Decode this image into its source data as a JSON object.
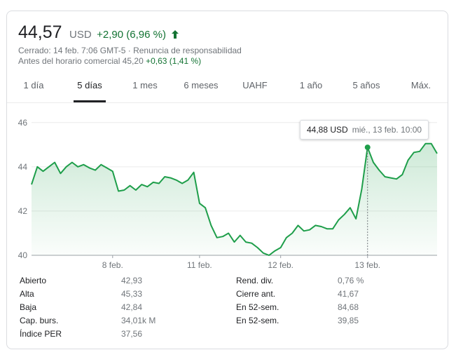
{
  "quote": {
    "price": "44,57",
    "currency": "USD",
    "change": "+2,90 (6,96 %)",
    "status_line": "Cerrado: 14 feb. 7:06 GMT-5 · Renuncia de responsabilidad",
    "premarket_label": "Antes del horario comercial 45,20",
    "premarket_change": "+0,63 (1,41 %)"
  },
  "tabs": [
    {
      "label": "1 día"
    },
    {
      "label": "5 días"
    },
    {
      "label": "1 mes"
    },
    {
      "label": "6 meses"
    },
    {
      "label": "UAHF"
    },
    {
      "label": "1 año"
    },
    {
      "label": "5 años"
    },
    {
      "label": "Máx."
    }
  ],
  "active_tab": "5 días",
  "tooltip": {
    "value": "44,88 USD",
    "date": "mié., 13 feb. 10:00"
  },
  "colors": {
    "line": "#1e9e4a",
    "fill_top": "#1e9e4a",
    "positive": "#137333",
    "grid": "#ebebeb"
  },
  "chart_data": {
    "type": "area",
    "ylim": [
      40,
      46.5
    ],
    "yticks": [
      "40",
      "42",
      "44",
      "46"
    ],
    "ytick_values": [
      40,
      42,
      44,
      46
    ],
    "xticks": [
      "8 feb.",
      "11 feb.",
      "12 feb.",
      "13 feb."
    ],
    "xtick_index": [
      14,
      29,
      43,
      58
    ],
    "hover_index": 58,
    "values": [
      43.2,
      44.0,
      43.8,
      44.0,
      44.2,
      43.7,
      44.0,
      44.2,
      44.0,
      44.1,
      43.95,
      43.85,
      44.1,
      43.95,
      43.8,
      42.9,
      42.95,
      43.15,
      42.95,
      43.2,
      43.1,
      43.3,
      43.25,
      43.55,
      43.5,
      43.4,
      43.25,
      43.4,
      43.75,
      42.35,
      42.15,
      41.35,
      40.8,
      40.85,
      41.0,
      40.6,
      40.9,
      40.6,
      40.55,
      40.35,
      40.1,
      40.0,
      40.2,
      40.35,
      40.8,
      41.0,
      41.35,
      41.1,
      41.15,
      41.35,
      41.3,
      41.2,
      41.2,
      41.6,
      41.85,
      42.15,
      41.65,
      43.0,
      44.88,
      44.2,
      43.85,
      43.55,
      43.5,
      43.45,
      43.65,
      44.3,
      44.65,
      44.7,
      45.05,
      45.05,
      44.6
    ]
  },
  "stats": {
    "left": [
      {
        "label": "Abierto",
        "value": "42,93"
      },
      {
        "label": "Alta",
        "value": "45,33"
      },
      {
        "label": "Baja",
        "value": "42,84"
      },
      {
        "label": "Cap. burs.",
        "value": "34,01k M"
      },
      {
        "label": "Índice PER",
        "value": "37,56"
      }
    ],
    "right": [
      {
        "label": "Rend. div.",
        "value": "0,76 %"
      },
      {
        "label": "Cierre ant.",
        "value": "41,67"
      },
      {
        "label": "En 52-sem.",
        "value": "84,68"
      },
      {
        "label": "En 52-sem.",
        "value": "39,85"
      }
    ]
  }
}
